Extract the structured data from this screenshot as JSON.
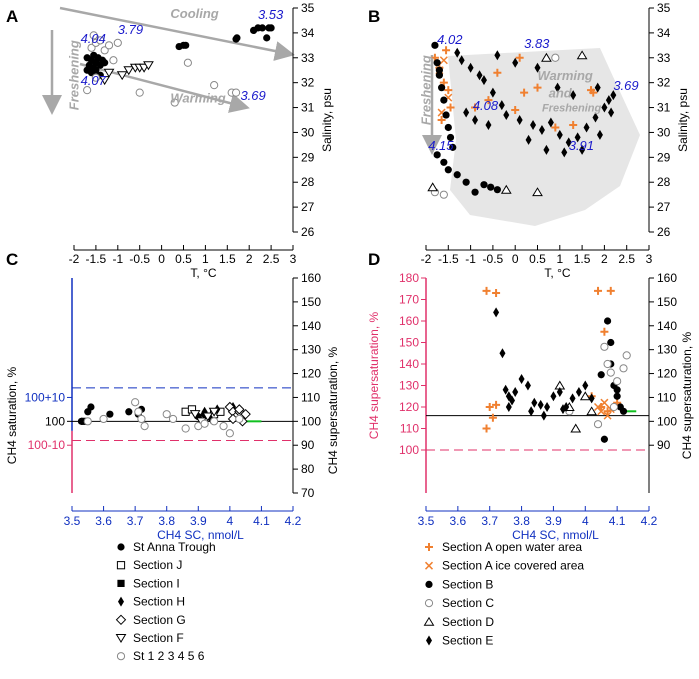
{
  "chart_data": [
    {
      "panel": "A",
      "type": "scatter",
      "xlabel": "T, °C",
      "ylabel": "Salinity, psu",
      "xlim": [
        -2,
        3
      ],
      "ylim": [
        26,
        35
      ],
      "xticks": [
        "-2",
        "-1.5",
        "-1",
        "-0.5",
        "0",
        "0.5",
        "1",
        "1.5",
        "2",
        "2.5",
        "3"
      ],
      "yticks": [
        "26",
        "27",
        "28",
        "29",
        "30",
        "31",
        "32",
        "33",
        "34",
        "35"
      ],
      "annotations": [
        {
          "text": "3.79",
          "x": -1.0,
          "y": 33.95
        },
        {
          "text": "Cooling",
          "x": 0.2,
          "y": 34.6
        },
        {
          "text": "3.53",
          "x": 2.2,
          "y": 34.55
        },
        {
          "text": "4.04",
          "x": -1.85,
          "y": 33.6
        },
        {
          "text": "Freshening",
          "x": -1.9,
          "y": 32.3
        },
        {
          "text": "4.07",
          "x": -1.85,
          "y": 31.9
        },
        {
          "text": "Warming",
          "x": 0.2,
          "y": 31.2
        },
        {
          "text": "3.69",
          "x": 1.8,
          "y": 31.3
        }
      ],
      "series": [
        {
          "name": "St Anna Trough",
          "marker": "filled-circle",
          "x": [
            -1.7,
            -1.65,
            -1.6,
            -1.55,
            -1.5,
            -1.45,
            -1.4,
            -1.35,
            -1.7,
            -1.6,
            -1.5,
            -1.4,
            -1.3,
            -1.65,
            -1.55,
            0.4,
            0.5,
            0.55,
            1.7,
            1.72,
            2.1,
            2.2,
            2.3,
            2.45,
            2.4,
            2.5
          ],
          "y": [
            32.5,
            32.7,
            32.9,
            32.6,
            32.8,
            33.0,
            32.7,
            32.9,
            33.0,
            32.4,
            32.5,
            32.3,
            32.8,
            32.6,
            33.1,
            33.45,
            33.5,
            33.5,
            33.75,
            33.8,
            34.1,
            34.2,
            34.2,
            34.2,
            33.8,
            34.2
          ]
        },
        {
          "name": "Section F",
          "marker": "open-down-triangle",
          "x": [
            -1.3,
            -1.2,
            -0.75,
            -0.6,
            -0.5,
            -0.4,
            -0.3,
            -0.9
          ],
          "y": [
            32.1,
            32.4,
            32.5,
            32.6,
            32.6,
            32.6,
            32.7,
            32.3
          ]
        },
        {
          "name": "St 1 2 3 4 5 6",
          "marker": "open-circle",
          "x": [
            -1.6,
            -1.5,
            -1.4,
            -1.3,
            -1.2,
            -1.1,
            -1.0,
            -1.5,
            -1.7,
            -0.5,
            0.3,
            0.6,
            1.2,
            1.6,
            1.7,
            -1.55
          ],
          "y": [
            33.4,
            33.6,
            33.7,
            33.3,
            33.5,
            32.9,
            33.6,
            32.2,
            31.7,
            31.6,
            31.2,
            32.8,
            31.9,
            31.6,
            31.6,
            33.9
          ]
        }
      ]
    },
    {
      "panel": "B",
      "type": "scatter",
      "xlabel": "T, °C",
      "ylabel": "Salinity, psu",
      "xlim": [
        -2,
        3
      ],
      "ylim": [
        26,
        35
      ],
      "xticks": [
        "-2",
        "-1.5",
        "-1",
        "-0.5",
        "0",
        "0.5",
        "1",
        "1.5",
        "2",
        "2.5",
        "3"
      ],
      "yticks": [
        "26",
        "27",
        "28",
        "29",
        "30",
        "31",
        "32",
        "33",
        "34",
        "35"
      ],
      "annotations": [
        {
          "text": "4.02",
          "x": -1.75,
          "y": 33.55
        },
        {
          "text": "3.83",
          "x": 0.2,
          "y": 33.4
        },
        {
          "text": "Freshening",
          "x": -1.9,
          "y": 31.7
        },
        {
          "text": "Warming",
          "x": 0.5,
          "y": 32.1
        },
        {
          "text": "and",
          "x": 0.75,
          "y": 31.4
        },
        {
          "text": "Freshening",
          "x": 0.6,
          "y": 30.85
        },
        {
          "text": "3.69",
          "x": 2.2,
          "y": 31.7
        },
        {
          "text": "4.08",
          "x": -0.95,
          "y": 30.9
        },
        {
          "text": "4.15",
          "x": -1.95,
          "y": 29.3
        },
        {
          "text": "3.91",
          "x": 1.2,
          "y": 29.3
        }
      ],
      "series": [
        {
          "name": "Section A open water area",
          "marker": "orange-plus",
          "x": [
            -1.8,
            -1.7,
            -1.6,
            -1.5,
            -1.45,
            -1.65,
            -1.55,
            -0.9,
            -0.4,
            0.1,
            0.2,
            0.5,
            0.9,
            1.3,
            1.7,
            1.75,
            -0.6,
            0.0
          ],
          "y": [
            33.0,
            32.6,
            32.0,
            31.7,
            31.0,
            30.5,
            33.3,
            31.0,
            32.4,
            33.0,
            31.6,
            31.8,
            30.2,
            30.3,
            31.7,
            31.6,
            31.3,
            30.9
          ]
        },
        {
          "name": "Section A ice covered area",
          "marker": "orange-x",
          "x": [
            -1.7,
            -1.6,
            -1.5,
            -1.65
          ],
          "y": [
            32.5,
            32.9,
            31.4,
            30.8
          ]
        },
        {
          "name": "Section B",
          "marker": "filled-circle",
          "x": [
            -1.8,
            -1.75,
            -1.7,
            -1.65,
            -1.6,
            -1.55,
            -1.5,
            -1.45,
            -1.4,
            -1.75,
            -1.6,
            -1.5,
            -1.3,
            -1.1,
            -0.9,
            -0.7,
            -0.4,
            -0.55,
            -1.7
          ],
          "y": [
            33.5,
            32.8,
            32.3,
            31.8,
            31.3,
            30.7,
            30.2,
            29.8,
            29.4,
            29.1,
            28.8,
            28.5,
            28.3,
            28.0,
            27.6,
            27.9,
            27.7,
            27.8,
            32.5
          ]
        },
        {
          "name": "Section C",
          "marker": "open-circle",
          "x": [
            -1.8,
            0.9,
            -1.6
          ],
          "y": [
            27.6,
            33.0,
            27.5
          ]
        },
        {
          "name": "Section D",
          "marker": "open-triangle",
          "x": [
            -1.85,
            -0.2,
            0.5,
            1.5,
            0.7
          ],
          "y": [
            27.8,
            27.7,
            27.6,
            33.1,
            33.0
          ]
        },
        {
          "name": "Section E",
          "marker": "filled-diamond",
          "x": [
            -1.3,
            -1.2,
            -1.0,
            -0.8,
            -0.7,
            -0.5,
            -0.3,
            -0.2,
            0.1,
            0.4,
            0.6,
            0.8,
            1.0,
            1.2,
            1.4,
            1.6,
            1.8,
            2.0,
            2.1,
            2.2,
            -1.1,
            -0.9,
            -0.6,
            0.3,
            0.7,
            1.1,
            1.5,
            1.9,
            2.15,
            -0.4,
            0.0,
            0.5,
            0.95,
            1.3,
            1.85
          ],
          "y": [
            33.2,
            32.9,
            32.6,
            32.3,
            32.1,
            31.6,
            31.1,
            30.7,
            30.5,
            30.3,
            30.1,
            30.4,
            29.9,
            29.6,
            29.8,
            30.2,
            30.6,
            31.0,
            31.3,
            31.5,
            30.8,
            30.5,
            30.3,
            29.7,
            29.3,
            29.2,
            29.3,
            29.9,
            30.8,
            33.1,
            32.8,
            32.6,
            31.8,
            31.5,
            31.8
          ]
        }
      ]
    },
    {
      "panel": "C",
      "type": "scatter",
      "xlabel": "CH4 SC, nmol/L",
      "ylabel_left": "CH4 saturation, %",
      "ylabel_right": "CH4 supersaturation, %",
      "xlim": [
        3.5,
        4.2
      ],
      "ylim_right": [
        70,
        160
      ],
      "xticks": [
        "3.5",
        "3.6",
        "3.7",
        "3.8",
        "3.9",
        "4",
        "4.1",
        "4.2"
      ],
      "yticks_right": [
        "70",
        "80",
        "90",
        "100",
        "110",
        "120",
        "130",
        "140",
        "150",
        "160"
      ],
      "yticks_left": [
        "100+10",
        "100",
        "100-10"
      ],
      "reference_lines": [
        {
          "kind": "blue-dashed",
          "y": 114
        },
        {
          "kind": "black-solid",
          "y": 100
        },
        {
          "kind": "pink-dashed",
          "y": 92
        },
        {
          "kind": "green-solid",
          "y": 100,
          "x": [
            4.05,
            4.1
          ]
        }
      ],
      "series": [
        {
          "name": "St Anna Trough",
          "marker": "filled-circle",
          "x": [
            3.53,
            3.55,
            3.56,
            3.62,
            3.68,
            3.71,
            3.72,
            3.9,
            3.92
          ],
          "y": [
            100,
            104,
            106,
            103,
            104,
            103,
            105,
            102,
            103
          ]
        },
        {
          "name": "Section J",
          "marker": "open-square",
          "x": [
            3.86,
            3.88,
            3.95,
            3.97
          ],
          "y": [
            104,
            105,
            103,
            104
          ]
        },
        {
          "name": "Section I",
          "marker": "filled-square",
          "x": [
            3.54
          ],
          "y": [
            100
          ]
        },
        {
          "name": "Section H",
          "marker": "filled-diamond",
          "x": [
            3.92,
            3.94,
            3.96,
            4.01,
            4.02
          ],
          "y": [
            104,
            101,
            105,
            106,
            103
          ]
        },
        {
          "name": "Section G",
          "marker": "open-diamond",
          "x": [
            4.0,
            4.01,
            4.02,
            4.03,
            4.04,
            4.05,
            4.01,
            4.03
          ],
          "y": [
            106,
            104,
            102,
            104,
            100,
            103,
            101,
            105
          ]
        },
        {
          "name": "Section F",
          "marker": "open-down-triangle",
          "x": [
            3.89,
            3.91,
            3.93,
            3.95
          ],
          "y": [
            103,
            100,
            102,
            104
          ]
        },
        {
          "name": "St 1 2 3 4 5 6",
          "marker": "open-circle",
          "x": [
            3.55,
            3.6,
            3.7,
            3.71,
            3.72,
            3.73,
            3.8,
            3.82,
            3.86,
            3.9,
            3.92,
            3.95,
            3.98,
            4.0,
            4.03
          ],
          "y": [
            100,
            101,
            108,
            104,
            101,
            98,
            103,
            101,
            97,
            98,
            99,
            100,
            98,
            95,
            101
          ]
        }
      ]
    },
    {
      "panel": "D",
      "type": "scatter",
      "xlabel": "CH4 SC, nmol/L",
      "ylabel_left": "CH4 supersaturation, %",
      "ylabel_right": "CH4 supersaturation, %",
      "xlim": [
        3.5,
        4.2
      ],
      "ylim_left": [
        80,
        180
      ],
      "ylim_right": [
        70,
        160
      ],
      "xticks": [
        "3.5",
        "3.6",
        "3.7",
        "3.8",
        "3.9",
        "4",
        "4.1",
        "4.2"
      ],
      "yticks_left": [
        "100",
        "110",
        "120",
        "130",
        "140",
        "150",
        "160",
        "170",
        "180"
      ],
      "yticks_right": [
        "90",
        "100",
        "110",
        "120",
        "130",
        "140",
        "150",
        "160"
      ],
      "reference_lines": [
        {
          "kind": "black-solid",
          "y_left": 116
        },
        {
          "kind": "pink-dashed",
          "y_left": 100
        },
        {
          "kind": "green-solid",
          "y_left": 118,
          "x": [
            4.12,
            4.16
          ]
        }
      ],
      "series": [
        {
          "name": "Section A open water area",
          "marker": "orange-plus",
          "x": [
            3.69,
            3.7,
            3.72,
            3.69,
            3.71,
            4.04,
            4.06,
            4.08,
            4.02,
            4.05,
            4.07,
            4.1,
            3.72
          ],
          "y": [
            174,
            120,
            173,
            110,
            115,
            174,
            155,
            174,
            125,
            120,
            118,
            122,
            121
          ]
        },
        {
          "name": "Section A ice covered area",
          "marker": "orange-x",
          "x": [
            4.04,
            4.05,
            4.06,
            4.07,
            4.08
          ],
          "y": [
            120,
            118,
            122,
            116,
            119
          ]
        },
        {
          "name": "Section B",
          "marker": "filled-circle",
          "x": [
            4.05,
            4.07,
            4.08,
            4.09,
            4.1,
            4.11,
            4.12,
            4.06,
            4.08,
            4.1
          ],
          "y": [
            135,
            160,
            150,
            130,
            125,
            120,
            118,
            105,
            140,
            128
          ]
        },
        {
          "name": "Section C",
          "marker": "open-circle",
          "x": [
            4.06,
            4.07,
            4.08,
            4.1,
            4.12,
            4.13,
            3.95,
            4.04,
            4.09
          ],
          "y": [
            148,
            140,
            136,
            132,
            138,
            144,
            118,
            112,
            120
          ]
        },
        {
          "name": "Section D",
          "marker": "open-triangle",
          "x": [
            3.92,
            3.95,
            4.0,
            4.02,
            3.97
          ],
          "y": [
            130,
            120,
            125,
            118,
            110
          ]
        },
        {
          "name": "Section E",
          "marker": "filled-diamond",
          "x": [
            3.72,
            3.74,
            3.75,
            3.76,
            3.77,
            3.78,
            3.8,
            3.82,
            3.84,
            3.86,
            3.88,
            3.9,
            3.92,
            3.94,
            3.96,
            3.98,
            4.0,
            4.02,
            3.76,
            3.83,
            3.87,
            3.93
          ],
          "y": [
            164,
            145,
            128,
            125,
            123,
            127,
            133,
            130,
            122,
            121,
            120,
            125,
            127,
            120,
            124,
            127,
            130,
            124,
            120,
            118,
            116,
            119
          ]
        }
      ]
    }
  ],
  "legend_left": {
    "items": [
      "St Anna Trough",
      "Section J",
      "Section I",
      "Section H",
      "Section G",
      "Section F",
      "St 1 2 3 4 5 6"
    ]
  },
  "legend_right": {
    "items": [
      "Section A open water area",
      "Section A ice covered area",
      "Section B",
      "Section C",
      "Section D",
      "Section E"
    ]
  },
  "colors": {
    "orange": "#f08030",
    "blue_axis": "#1030c0",
    "pink": "#e0306a",
    "green": "#10c020",
    "arrow_gray": "#a8a8a8",
    "blue_text": "#1a1acc"
  }
}
